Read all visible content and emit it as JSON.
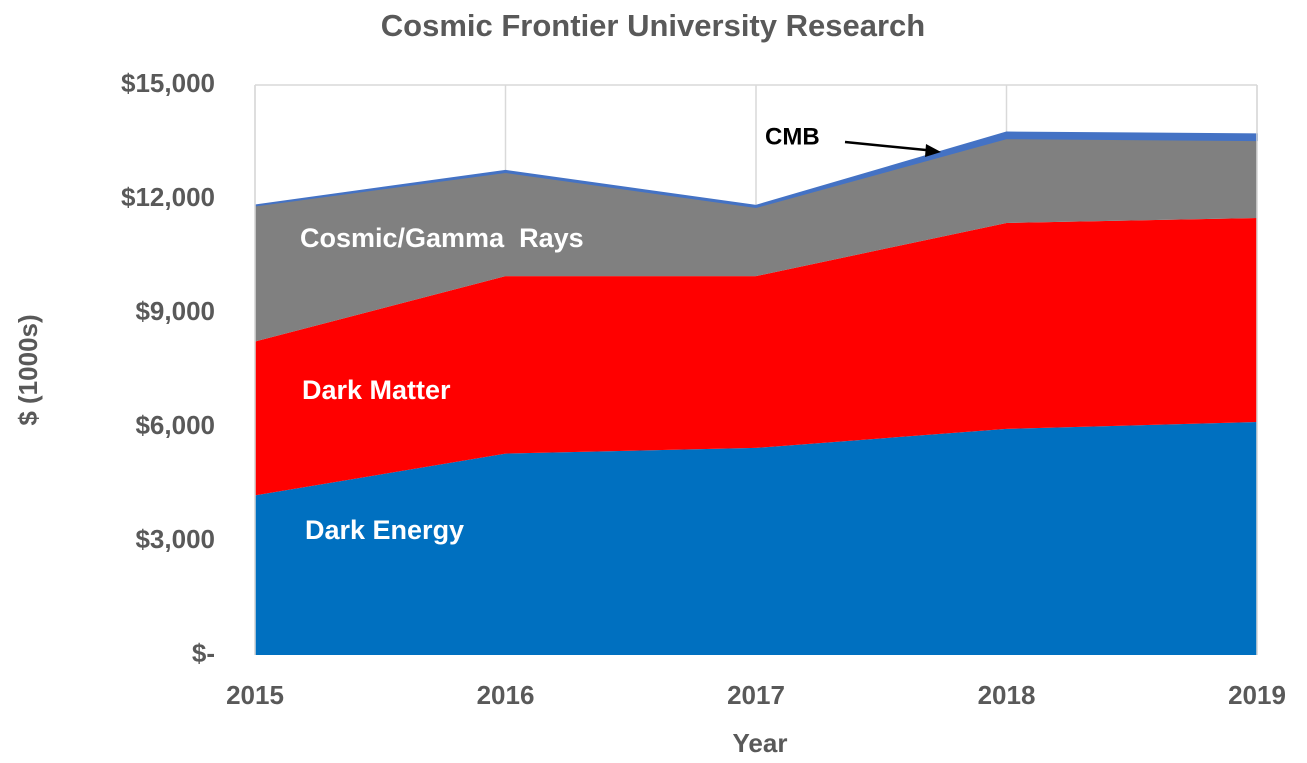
{
  "chart_data": {
    "type": "stacked_area",
    "title": "Cosmic Frontier University Research",
    "x_label": "Year",
    "y_label": "$ (1000s)",
    "x": [
      2015,
      2016,
      2017,
      2018,
      2019
    ],
    "xlim": [
      2015,
      2019
    ],
    "xticks": [
      2015,
      2016,
      2017,
      2018,
      2019
    ],
    "ylim": [
      0,
      15000
    ],
    "yticks": [
      {
        "value": 0,
        "label": "$-"
      },
      {
        "value": 3000,
        "label": "$3,000"
      },
      {
        "value": 6000,
        "label": "$6,000"
      },
      {
        "value": 9000,
        "label": "$9,000"
      },
      {
        "value": 12000,
        "label": "$12,000"
      },
      {
        "value": 15000,
        "label": "$15,000"
      }
    ],
    "grid": "x",
    "series": [
      {
        "name": "Dark Energy",
        "color": "#0070c0",
        "values": [
          4200,
          5300,
          5450,
          5950,
          6130
        ]
      },
      {
        "name": "Dark Matter",
        "color": "#ff0000",
        "values": [
          4050,
          4670,
          4520,
          5420,
          5370
        ]
      },
      {
        "name": "Cosmic/Gamma  Rays",
        "color": "#808080",
        "values": [
          3580,
          2740,
          1820,
          2230,
          2050
        ]
      },
      {
        "name": "CMB",
        "color": "#4472c4",
        "values": [
          0,
          30,
          30,
          150,
          150
        ]
      }
    ]
  }
}
